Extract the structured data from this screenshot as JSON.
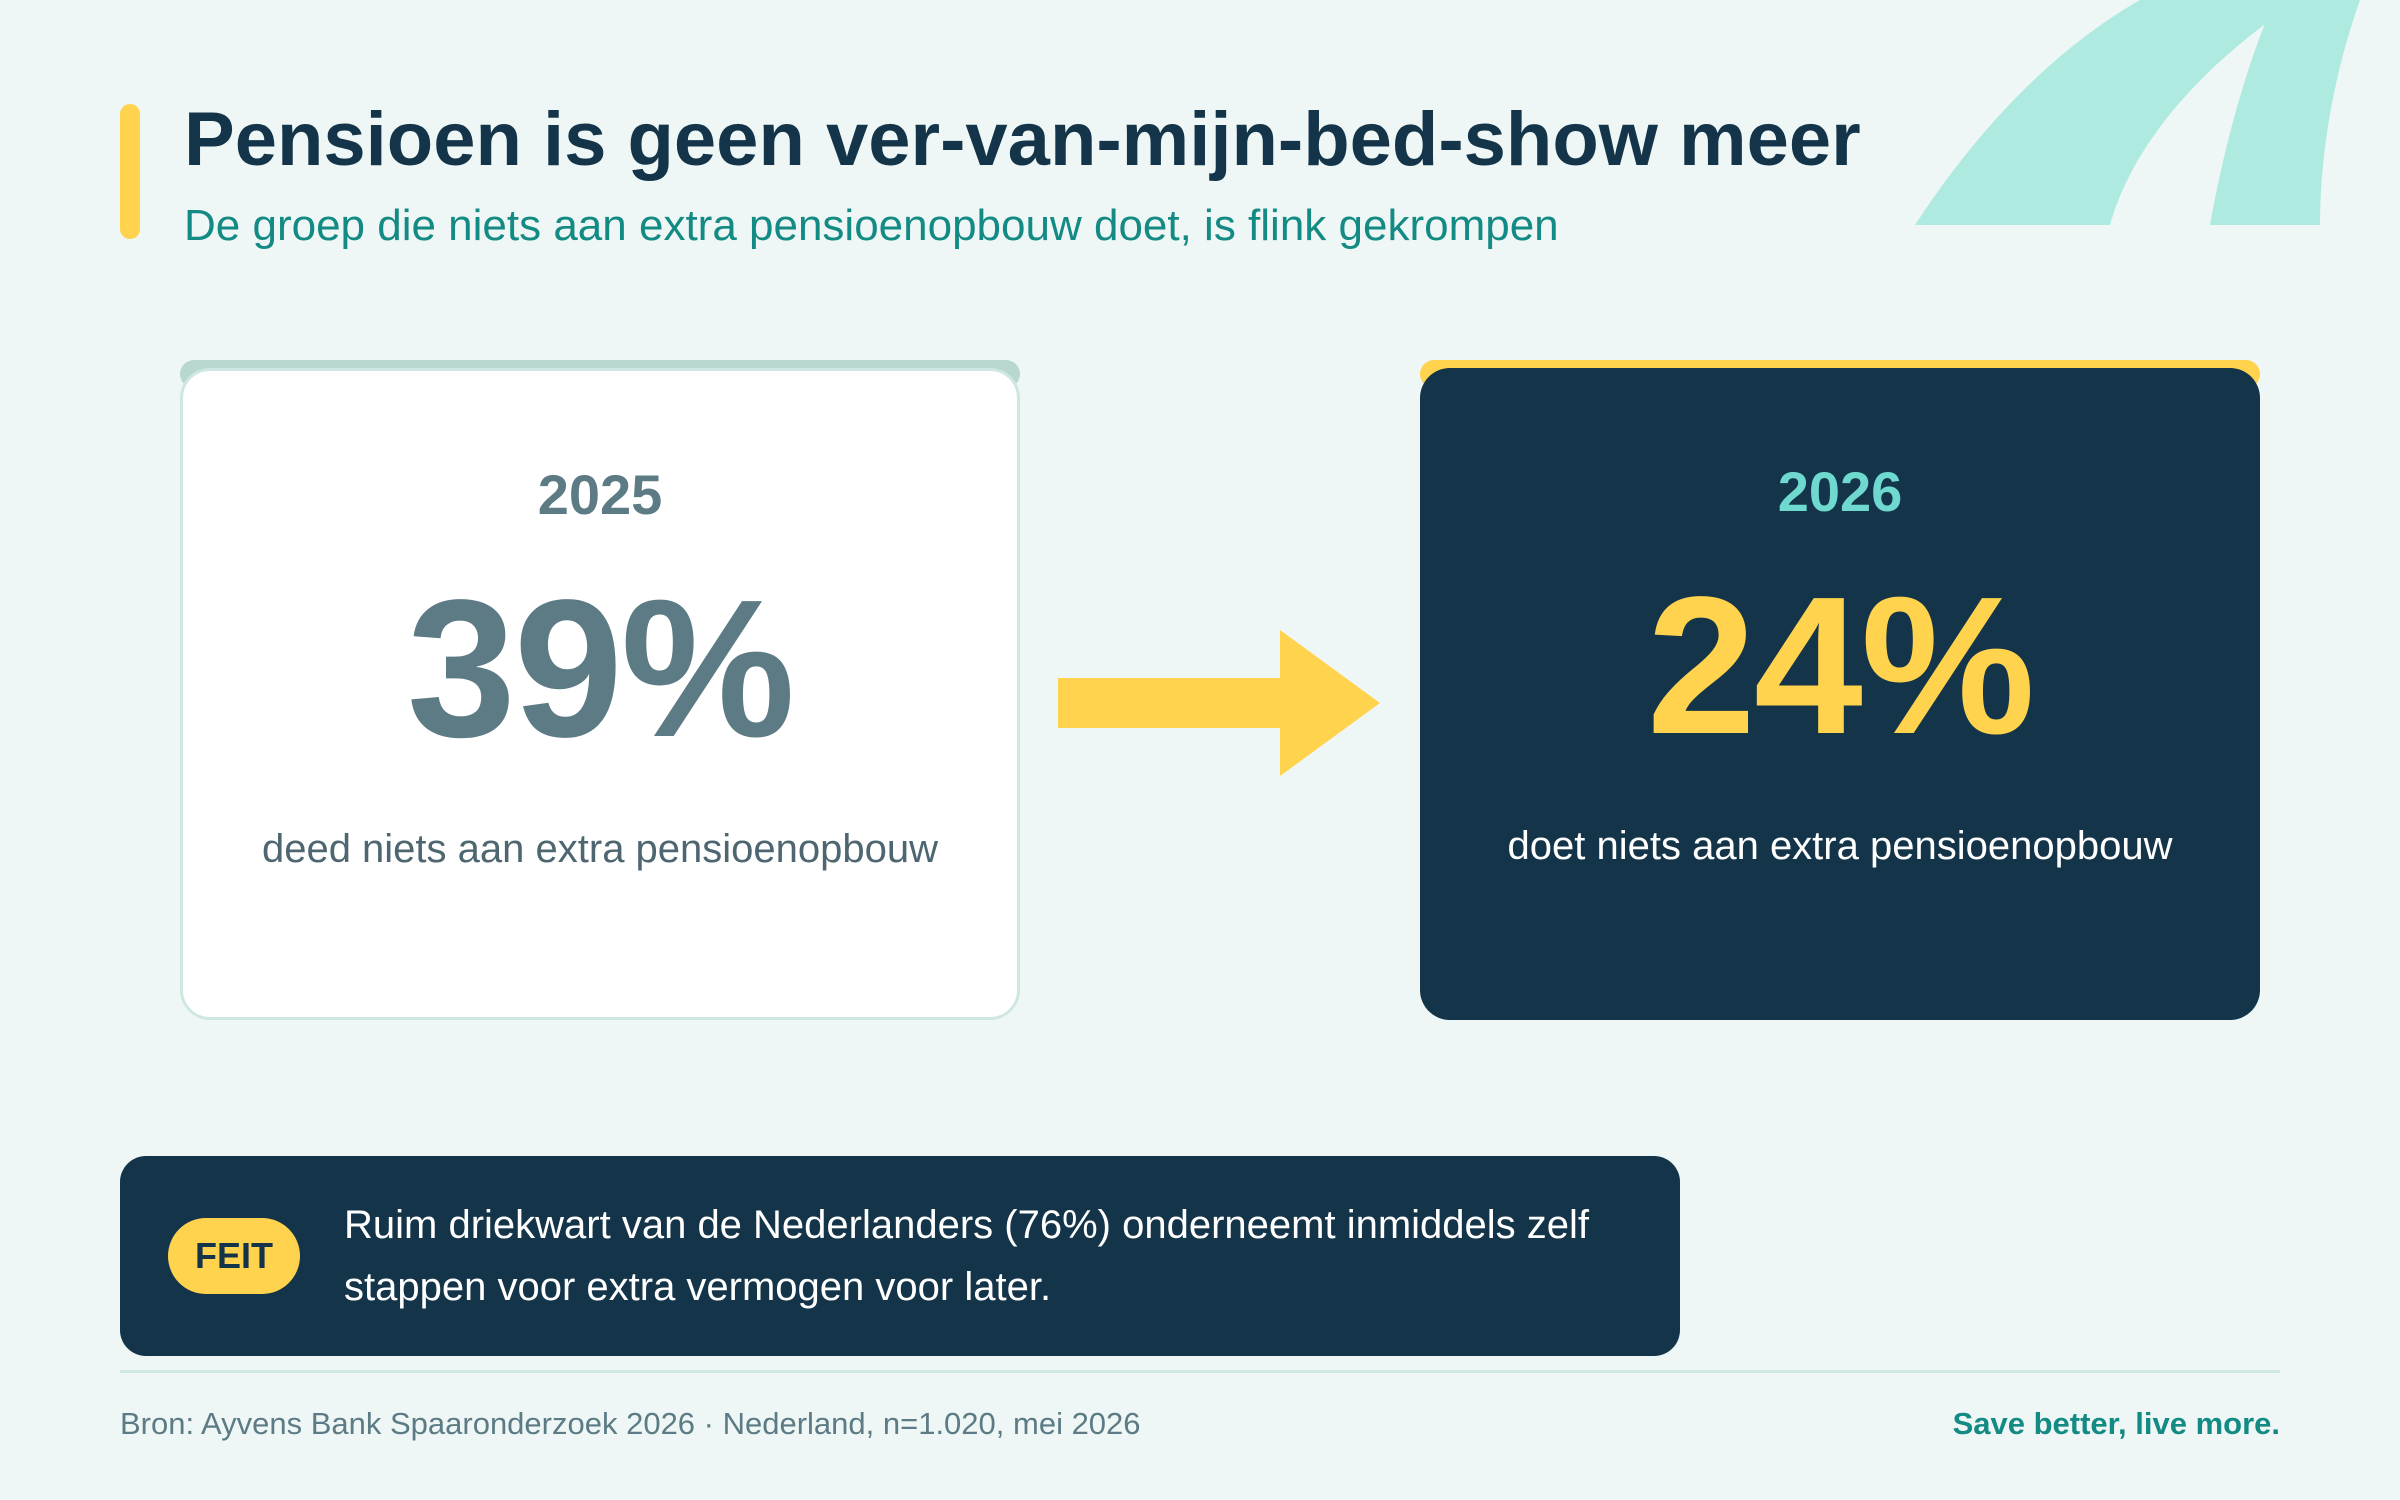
{
  "header": {
    "title": "Pensioen is geen ver-van-mijn-bed-show meer",
    "subtitle": "De groep die niets aan extra pensioenopbouw doet, is flink gekrompen"
  },
  "comparison": {
    "before": {
      "year": "2025",
      "value": "39%",
      "description": "deed niets aan extra pensioenopbouw"
    },
    "after": {
      "year": "2026",
      "value": "24%",
      "description": "doet niets aan extra pensioenopbouw"
    }
  },
  "fact": {
    "badge": "FEIT",
    "text": "Ruim driekwart van de Nederlanders (76%) onderneemt inmiddels zelf stappen voor extra vermogen voor later."
  },
  "footer": {
    "source": "Bron: Ayvens Bank Spaaronderzoek 2026 · Nederland, n=1.020, mei 2026",
    "tagline": "Save better, live more."
  },
  "colors": {
    "navy": "#143549",
    "yellow": "#ffd34d",
    "teal": "#138a84",
    "mint": "#aeeae0",
    "background": "#eef7f5"
  },
  "icons": {
    "decoration": "quote-mark-icon",
    "comparison": "arrow-right-icon"
  }
}
